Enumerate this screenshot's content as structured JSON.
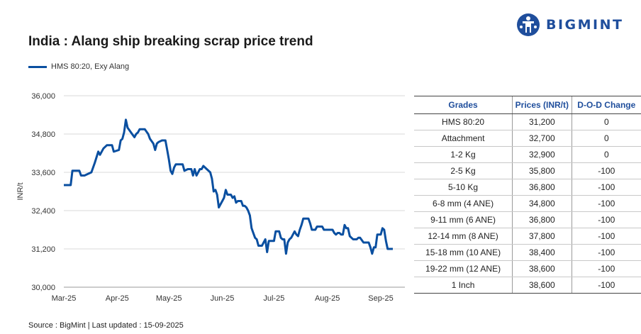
{
  "header": {
    "title": "India : Alang ship breaking scrap price trend",
    "logo_text": "BIGMINT"
  },
  "colors": {
    "line": "#0a4fa0",
    "brand": "#1f4e9c",
    "negative": "#d42020"
  },
  "chart_data": {
    "type": "line",
    "title": "India : Alang ship breaking scrap price trend",
    "ylabel": "INR/t",
    "xlabel": "",
    "ylim": [
      30000,
      36000
    ],
    "yticks": [
      30000,
      31200,
      32400,
      33600,
      34800,
      36000
    ],
    "ytick_labels": [
      "30,000",
      "31,200",
      "32,400",
      "33,600",
      "34,800",
      "36,000"
    ],
    "xlim": [
      "2025-03-01",
      "2025-09-15"
    ],
    "xticks": [
      "2025-03-01",
      "2025-04-01",
      "2025-05-01",
      "2025-06-01",
      "2025-07-01",
      "2025-08-01",
      "2025-09-01"
    ],
    "xtick_labels": [
      "Mar-25",
      "Apr-25",
      "May-25",
      "Jun-25",
      "Jul-25",
      "Aug-25",
      "Sep-25"
    ],
    "grid": "horizontal",
    "legend_position": "top-left",
    "series": [
      {
        "name": "HMS 80:20, Exy Alang",
        "points": [
          [
            "2025-03-01",
            33200
          ],
          [
            "2025-03-05",
            33200
          ],
          [
            "2025-03-06",
            33650
          ],
          [
            "2025-03-10",
            33650
          ],
          [
            "2025-03-11",
            33500
          ],
          [
            "2025-03-13",
            33500
          ],
          [
            "2025-03-15",
            33550
          ],
          [
            "2025-03-17",
            33600
          ],
          [
            "2025-03-19",
            33900
          ],
          [
            "2025-03-21",
            34250
          ],
          [
            "2025-03-22",
            34150
          ],
          [
            "2025-03-24",
            34350
          ],
          [
            "2025-03-26",
            34450
          ],
          [
            "2025-03-27",
            34450
          ],
          [
            "2025-03-29",
            34450
          ],
          [
            "2025-03-30",
            34250
          ],
          [
            "2025-04-02",
            34300
          ],
          [
            "2025-04-03",
            34600
          ],
          [
            "2025-04-04",
            34650
          ],
          [
            "2025-04-05",
            34850
          ],
          [
            "2025-04-06",
            35250
          ],
          [
            "2025-04-07",
            35000
          ],
          [
            "2025-04-09",
            34850
          ],
          [
            "2025-04-11",
            34700
          ],
          [
            "2025-04-12",
            34800
          ],
          [
            "2025-04-13",
            34850
          ],
          [
            "2025-04-14",
            34950
          ],
          [
            "2025-04-17",
            34950
          ],
          [
            "2025-04-19",
            34800
          ],
          [
            "2025-04-20",
            34650
          ],
          [
            "2025-04-22",
            34500
          ],
          [
            "2025-04-23",
            34300
          ],
          [
            "2025-04-24",
            34500
          ],
          [
            "2025-04-25",
            34550
          ],
          [
            "2025-04-27",
            34600
          ],
          [
            "2025-04-29",
            34600
          ],
          [
            "2025-04-30",
            34300
          ],
          [
            "2025-05-01",
            34000
          ],
          [
            "2025-05-02",
            33650
          ],
          [
            "2025-05-03",
            33550
          ],
          [
            "2025-05-04",
            33750
          ],
          [
            "2025-05-05",
            33850
          ],
          [
            "2025-05-07",
            33850
          ],
          [
            "2025-05-09",
            33850
          ],
          [
            "2025-05-10",
            33650
          ],
          [
            "2025-05-12",
            33700
          ],
          [
            "2025-05-14",
            33700
          ],
          [
            "2025-05-15",
            33500
          ],
          [
            "2025-05-16",
            33700
          ],
          [
            "2025-05-17",
            33500
          ],
          [
            "2025-05-18",
            33600
          ],
          [
            "2025-05-19",
            33700
          ],
          [
            "2025-05-20",
            33700
          ],
          [
            "2025-05-21",
            33800
          ],
          [
            "2025-05-23",
            33700
          ],
          [
            "2025-05-25",
            33600
          ],
          [
            "2025-05-26",
            33400
          ],
          [
            "2025-05-27",
            33000
          ],
          [
            "2025-05-28",
            33050
          ],
          [
            "2025-05-29",
            32900
          ],
          [
            "2025-05-30",
            32500
          ],
          [
            "2025-06-01",
            32700
          ],
          [
            "2025-06-02",
            32800
          ],
          [
            "2025-06-03",
            33050
          ],
          [
            "2025-06-04",
            32900
          ],
          [
            "2025-06-06",
            32900
          ],
          [
            "2025-06-07",
            32800
          ],
          [
            "2025-06-08",
            32850
          ],
          [
            "2025-06-09",
            32650
          ],
          [
            "2025-06-10",
            32700
          ],
          [
            "2025-06-12",
            32700
          ],
          [
            "2025-06-13",
            32550
          ],
          [
            "2025-06-14",
            32550
          ],
          [
            "2025-06-15",
            32500
          ],
          [
            "2025-06-16",
            32400
          ],
          [
            "2025-06-17",
            32250
          ],
          [
            "2025-06-18",
            31850
          ],
          [
            "2025-06-19",
            31700
          ],
          [
            "2025-06-20",
            31550
          ],
          [
            "2025-06-21",
            31500
          ],
          [
            "2025-06-22",
            31300
          ],
          [
            "2025-06-23",
            31300
          ],
          [
            "2025-06-24",
            31300
          ],
          [
            "2025-06-25",
            31400
          ],
          [
            "2025-06-26",
            31500
          ],
          [
            "2025-06-27",
            31100
          ],
          [
            "2025-06-28",
            31450
          ],
          [
            "2025-06-29",
            31450
          ],
          [
            "2025-07-01",
            31450
          ],
          [
            "2025-07-02",
            31750
          ],
          [
            "2025-07-03",
            31750
          ],
          [
            "2025-07-04",
            31750
          ],
          [
            "2025-07-05",
            31550
          ],
          [
            "2025-07-06",
            31500
          ],
          [
            "2025-07-07",
            31500
          ],
          [
            "2025-07-08",
            31050
          ],
          [
            "2025-07-09",
            31400
          ],
          [
            "2025-07-10",
            31500
          ],
          [
            "2025-07-11",
            31550
          ],
          [
            "2025-07-12",
            31650
          ],
          [
            "2025-07-13",
            31750
          ],
          [
            "2025-07-14",
            31650
          ],
          [
            "2025-07-15",
            31600
          ],
          [
            "2025-07-16",
            31800
          ],
          [
            "2025-07-17",
            31950
          ],
          [
            "2025-07-18",
            32150
          ],
          [
            "2025-07-19",
            32150
          ],
          [
            "2025-07-20",
            32150
          ],
          [
            "2025-07-21",
            32150
          ],
          [
            "2025-07-22",
            32000
          ],
          [
            "2025-07-23",
            31800
          ],
          [
            "2025-07-24",
            31800
          ],
          [
            "2025-07-25",
            31800
          ],
          [
            "2025-07-26",
            31900
          ],
          [
            "2025-07-27",
            31900
          ],
          [
            "2025-07-28",
            31900
          ],
          [
            "2025-07-29",
            31900
          ],
          [
            "2025-07-30",
            31800
          ],
          [
            "2025-08-01",
            31800
          ],
          [
            "2025-08-03",
            31800
          ],
          [
            "2025-08-04",
            31800
          ],
          [
            "2025-08-05",
            31700
          ],
          [
            "2025-08-06",
            31650
          ],
          [
            "2025-08-07",
            31700
          ],
          [
            "2025-08-08",
            31700
          ],
          [
            "2025-08-09",
            31650
          ],
          [
            "2025-08-10",
            31650
          ],
          [
            "2025-08-11",
            31950
          ],
          [
            "2025-08-12",
            31850
          ],
          [
            "2025-08-13",
            31850
          ],
          [
            "2025-08-14",
            31600
          ],
          [
            "2025-08-15",
            31550
          ],
          [
            "2025-08-16",
            31500
          ],
          [
            "2025-08-18",
            31500
          ],
          [
            "2025-08-19",
            31550
          ],
          [
            "2025-08-20",
            31550
          ],
          [
            "2025-08-22",
            31400
          ],
          [
            "2025-08-24",
            31400
          ],
          [
            "2025-08-25",
            31400
          ],
          [
            "2025-08-26",
            31250
          ],
          [
            "2025-08-27",
            31050
          ],
          [
            "2025-08-28",
            31250
          ],
          [
            "2025-08-29",
            31250
          ],
          [
            "2025-08-30",
            31650
          ],
          [
            "2025-08-31",
            31650
          ],
          [
            "2025-09-01",
            31650
          ],
          [
            "2025-09-02",
            31850
          ],
          [
            "2025-09-03",
            31800
          ],
          [
            "2025-09-04",
            31450
          ],
          [
            "2025-09-05",
            31200
          ],
          [
            "2025-09-06",
            31200
          ],
          [
            "2025-09-08",
            31200
          ]
        ]
      }
    ]
  },
  "table": {
    "headers": [
      "Grades",
      "Prices (INR/t)",
      "D-O-D Change"
    ],
    "rows": [
      {
        "grade": "HMS 80:20",
        "price": "31,200",
        "change": "0"
      },
      {
        "grade": "Attachment",
        "price": "32,700",
        "change": "0"
      },
      {
        "grade": "1-2 Kg",
        "price": "32,900",
        "change": "0"
      },
      {
        "grade": "2-5 Kg",
        "price": "35,800",
        "change": "-100"
      },
      {
        "grade": "5-10 Kg",
        "price": "36,800",
        "change": "-100"
      },
      {
        "grade": "6-8 mm (4 ANE)",
        "price": "34,800",
        "change": "-100"
      },
      {
        "grade": "9-11 mm (6 ANE)",
        "price": "36,800",
        "change": "-100"
      },
      {
        "grade": "12-14 mm (8 ANE)",
        "price": "37,800",
        "change": "-100"
      },
      {
        "grade": "15-18 mm (10 ANE)",
        "price": "38,400",
        "change": "-100"
      },
      {
        "grade": "19-22 mm (12 ANE)",
        "price": "38,600",
        "change": "-100"
      },
      {
        "grade": "1 Inch",
        "price": "38,600",
        "change": "-100"
      }
    ]
  },
  "footer": {
    "source": "Source : BigMint | Last updated : 15-09-2025"
  }
}
